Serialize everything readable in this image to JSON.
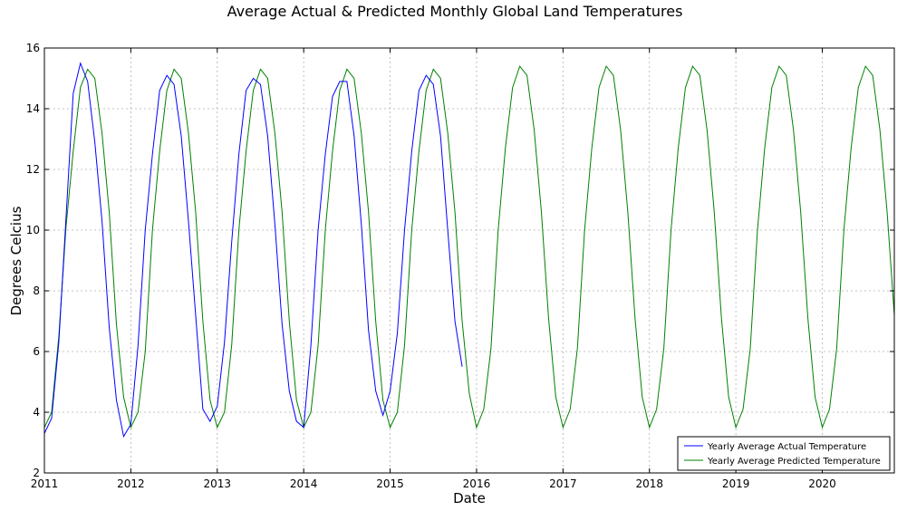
{
  "chart_data": {
    "type": "line",
    "title": "Average Actual & Predicted Monthly Global Land Temperatures",
    "xlabel": "Date",
    "ylabel": "Degrees Celcius",
    "xlim": [
      2011.0,
      2020.8333
    ],
    "ylim": [
      2,
      16
    ],
    "x_ticks": [
      2011,
      2012,
      2013,
      2014,
      2015,
      2016,
      2017,
      2018,
      2019,
      2020
    ],
    "x_tick_labels": [
      "2011",
      "2012",
      "2013",
      "2014",
      "2015",
      "2016",
      "2017",
      "2018",
      "2019",
      "2020"
    ],
    "y_ticks": [
      2,
      4,
      6,
      8,
      10,
      12,
      14,
      16
    ],
    "y_tick_labels": [
      "2",
      "4",
      "6",
      "8",
      "10",
      "12",
      "14",
      "16"
    ],
    "grid": true,
    "legend_position": "bottom-right",
    "colors": {
      "actual": "#0000ff",
      "predicted": "#008000"
    },
    "series": [
      {
        "name": "Yearly Average Actual Temperature",
        "color": "#0000ff",
        "start": 2011.0,
        "step_months": 1,
        "values": [
          3.3,
          3.8,
          6.3,
          10.4,
          14.5,
          15.5,
          14.9,
          12.9,
          10.3,
          6.8,
          4.4,
          3.2,
          3.6,
          6.2,
          10.0,
          12.5,
          14.6,
          15.1,
          14.8,
          13.1,
          10.3,
          7.2,
          4.1,
          3.7,
          4.2,
          6.3,
          9.6,
          12.5,
          14.6,
          15.0,
          14.8,
          13.1,
          10.2,
          6.9,
          4.7,
          3.7,
          3.5,
          6.2,
          10.0,
          12.5,
          14.4,
          14.9,
          14.9,
          13.1,
          10.2,
          6.7,
          4.7,
          3.9,
          4.7,
          6.6,
          10.0,
          12.6,
          14.6,
          15.1,
          14.8,
          13.1,
          10.0,
          7.0,
          5.5
        ]
      },
      {
        "name": "Yearly Average Predicted Temperature",
        "color": "#008000",
        "start": 2011.0,
        "step_months": 1,
        "values": [
          3.5,
          4.0,
          6.5,
          10.1,
          12.6,
          14.7,
          15.3,
          15.0,
          13.2,
          10.6,
          6.9,
          4.5,
          3.5,
          4.0,
          6.0,
          10.0,
          12.6,
          14.6,
          15.3,
          15.0,
          13.2,
          10.6,
          7.0,
          4.4,
          3.5,
          4.0,
          6.2,
          10.0,
          12.6,
          14.6,
          15.3,
          15.0,
          13.2,
          10.6,
          7.0,
          4.4,
          3.5,
          4.0,
          6.2,
          10.0,
          12.6,
          14.6,
          15.3,
          15.0,
          13.2,
          10.6,
          7.0,
          4.4,
          3.5,
          4.0,
          6.2,
          10.0,
          12.6,
          14.6,
          15.3,
          15.0,
          13.2,
          10.6,
          7.0,
          4.6,
          3.5,
          4.1,
          6.1,
          10.0,
          12.7,
          14.7,
          15.4,
          15.1,
          13.3,
          10.6,
          7.1,
          4.5,
          3.5,
          4.1,
          6.1,
          10.0,
          12.7,
          14.7,
          15.4,
          15.1,
          13.3,
          10.6,
          7.1,
          4.5,
          3.5,
          4.1,
          6.1,
          10.0,
          12.7,
          14.7,
          15.4,
          15.1,
          13.3,
          10.6,
          7.1,
          4.5,
          3.5,
          4.1,
          6.1,
          10.0,
          12.7,
          14.7,
          15.4,
          15.1,
          13.3,
          10.6,
          7.1,
          4.5,
          3.5,
          4.1,
          6.1,
          10.0,
          12.7,
          14.7,
          15.4,
          15.1,
          13.3,
          10.6,
          7.2
        ]
      }
    ]
  }
}
